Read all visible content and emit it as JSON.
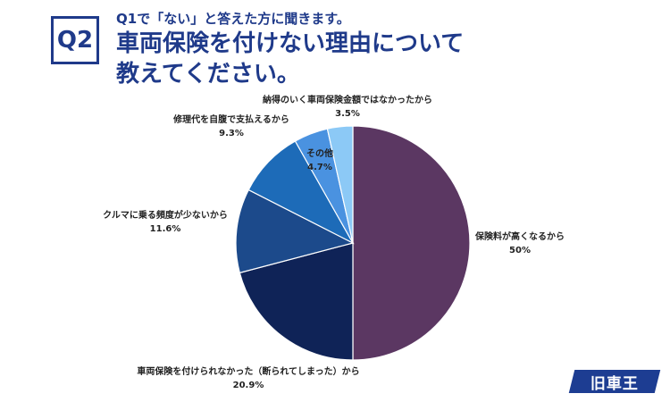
{
  "header": {
    "badge": "Q2",
    "subtitle": "Q1で「ない」と答えた方に聞きます。",
    "title_line1": "車両保険を付けない理由について",
    "title_line2": "教えてください。"
  },
  "brand": {
    "logo_text": "旧車王",
    "logo_color": "#1d3d92"
  },
  "chart_data": {
    "type": "pie",
    "start_angle_deg": 0,
    "direction": "clockwise",
    "slices": [
      {
        "label": "保険料が高くなるから",
        "value": 50,
        "display": "50%",
        "color": "#5b3762"
      },
      {
        "label": "車両保険を付けられなかった（断られてしまった）から",
        "value": 20.9,
        "display": "20.9%",
        "color": "#0f2357"
      },
      {
        "label": "クルマに乗る頻度が少ないから",
        "value": 11.6,
        "display": "11.6%",
        "color": "#1c4a8b"
      },
      {
        "label": "修理代を自腹で支払えるから",
        "value": 9.3,
        "display": "9.3%",
        "color": "#1d6bb8"
      },
      {
        "label": "その他",
        "value": 4.7,
        "display": "4.7%",
        "color": "#4a92e0"
      },
      {
        "label": "納得のいく車両保険金額ではなかったから",
        "value": 3.5,
        "display": "3.5%",
        "color": "#8cc9f6"
      }
    ]
  }
}
